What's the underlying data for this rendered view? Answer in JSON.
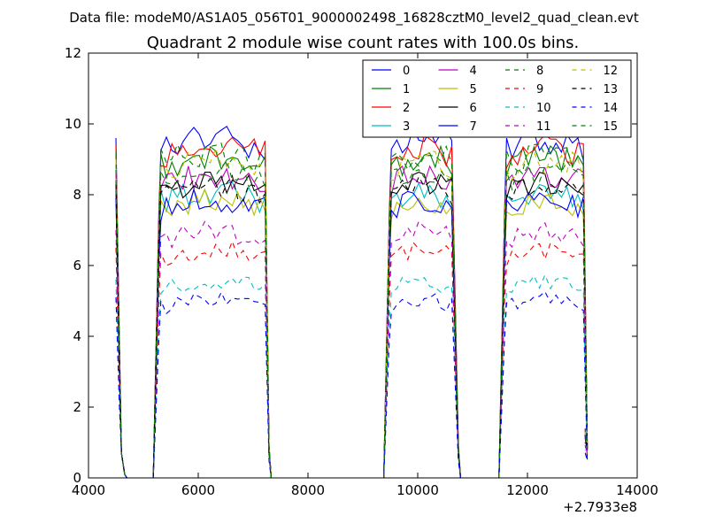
{
  "header": {
    "data_file": "Data file: modeM0/AS1A05_056T01_9000002498_16828cztM0_level2_quad_clean.evt"
  },
  "chart_data": {
    "type": "line",
    "title": "Quadrant 2 module wise count rates with 100.0s bins.",
    "xlabel": "",
    "ylabel": "",
    "offset_label": "+2.7933e8",
    "xlim": [
      4000,
      14000
    ],
    "ylim": [
      0,
      12
    ],
    "xticks": [
      4000,
      6000,
      8000,
      10000,
      12000,
      14000
    ],
    "xtick_labels": [
      "4000",
      "6000",
      "8000",
      "10000",
      "12000",
      "14000"
    ],
    "yticks": [
      0,
      2,
      4,
      6,
      8,
      10,
      12
    ],
    "ytick_labels": [
      "0",
      "2",
      "4",
      "6",
      "8",
      "10",
      "12"
    ],
    "legend_position": "top-right",
    "segments": [
      {
        "start": 5300,
        "end": 7250
      },
      {
        "start": 9500,
        "end": 10700
      },
      {
        "start": 11600,
        "end": 13050
      }
    ],
    "series": [
      {
        "name": "0",
        "color": "#0000ff",
        "dash": "solid",
        "level": 9.3
      },
      {
        "name": "1",
        "color": "#008000",
        "dash": "solid",
        "level": 8.8
      },
      {
        "name": "2",
        "color": "#ff0000",
        "dash": "solid",
        "level": 9.1
      },
      {
        "name": "3",
        "color": "#00bfbf",
        "dash": "solid",
        "level": 7.8
      },
      {
        "name": "4",
        "color": "#bf00bf",
        "dash": "solid",
        "level": 8.3
      },
      {
        "name": "5",
        "color": "#bfbf00",
        "dash": "solid",
        "level": 7.6
      },
      {
        "name": "6",
        "color": "#000000",
        "dash": "solid",
        "level": 8.1
      },
      {
        "name": "7",
        "color": "#0000ff",
        "dash": "solid",
        "level": 7.6
      },
      {
        "name": "8",
        "color": "#008000",
        "dash": "dashed",
        "level": 8.9
      },
      {
        "name": "9",
        "color": "#ff0000",
        "dash": "dashed",
        "level": 6.2
      },
      {
        "name": "10",
        "color": "#00bfbf",
        "dash": "dashed",
        "level": 5.3
      },
      {
        "name": "11",
        "color": "#bf00bf",
        "dash": "dashed",
        "level": 6.7
      },
      {
        "name": "12",
        "color": "#bfbf00",
        "dash": "dashed",
        "level": 8.7
      },
      {
        "name": "13",
        "color": "#000000",
        "dash": "dashed",
        "level": 8.0
      },
      {
        "name": "14",
        "color": "#0000ff",
        "dash": "dashed",
        "level": 4.8
      },
      {
        "name": "15",
        "color": "#008000",
        "dash": "dashed",
        "level": 8.4
      }
    ]
  }
}
